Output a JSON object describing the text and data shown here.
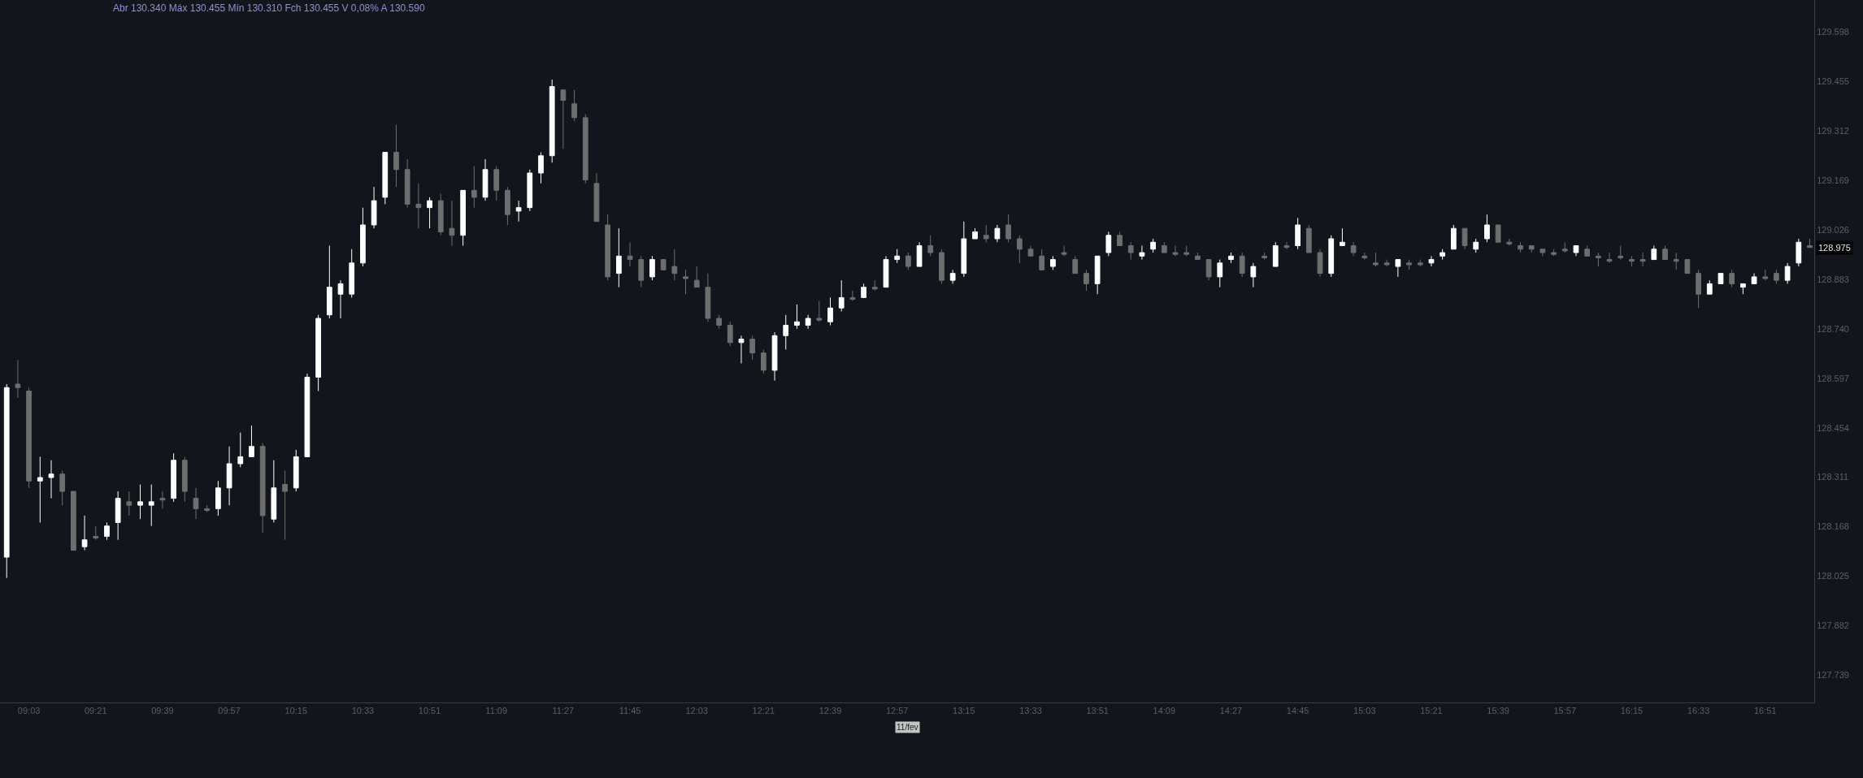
{
  "chart_data": {
    "type": "candlestick",
    "subtitle": "Abr 130.340 Máx 130.455 Mín 130.310 Fch 130.455 V 0,08% A 130.590",
    "x": [
      8.95,
      9.0,
      9.05,
      9.1,
      9.15,
      9.2,
      9.25,
      9.3,
      9.35,
      9.4,
      9.45,
      9.5,
      9.55,
      9.6,
      9.65,
      9.7,
      9.75,
      9.8,
      9.85,
      9.9,
      9.95,
      10.0,
      10.05,
      10.1,
      10.15,
      10.2,
      10.25,
      10.3,
      10.35,
      10.4,
      10.45,
      10.5,
      10.55,
      10.6,
      10.65,
      10.7,
      10.75,
      10.8,
      10.85,
      10.9,
      10.95,
      11.0,
      11.05,
      11.1,
      11.15,
      11.2,
      11.25,
      11.3,
      11.35,
      11.4,
      11.45,
      11.5,
      11.55,
      11.6,
      11.65,
      11.7,
      11.75,
      11.8,
      11.85,
      11.9,
      11.95,
      12.0,
      12.05,
      12.1,
      12.15,
      12.2,
      12.25,
      12.3,
      12.35,
      12.4,
      12.45,
      12.5,
      12.55,
      12.6,
      12.65,
      12.7,
      12.75,
      12.8,
      12.85,
      12.9,
      12.95,
      13.0,
      13.05,
      13.1,
      13.15,
      13.2,
      13.25,
      13.3,
      13.35,
      13.4,
      13.45,
      13.5,
      13.55,
      13.6,
      13.65,
      13.7,
      13.75,
      13.8,
      13.85,
      13.9,
      13.95,
      14.0,
      14.05,
      14.1,
      14.15,
      14.2,
      14.25,
      14.3,
      14.35,
      14.4,
      14.45,
      14.5,
      14.55,
      14.6,
      14.65,
      14.7,
      14.75,
      14.8,
      14.85,
      14.9,
      14.95,
      15.0,
      15.05,
      15.1,
      15.15,
      15.2,
      15.25,
      15.3,
      15.35,
      15.4,
      15.45,
      15.5,
      15.55,
      15.6,
      15.65,
      15.7,
      15.75,
      15.8,
      15.85,
      15.9,
      15.95,
      16.0,
      16.05,
      16.1,
      16.15,
      16.2,
      16.25,
      16.3,
      16.35,
      16.4,
      16.45,
      16.5,
      16.55,
      16.6,
      16.65,
      16.7,
      16.75,
      16.8,
      16.85,
      16.9,
      16.95,
      17.0,
      17.05
    ],
    "ohlc": [
      [
        128.08,
        128.58,
        128.02,
        128.57
      ],
      [
        128.58,
        128.65,
        128.54,
        128.57
      ],
      [
        128.56,
        128.57,
        128.28,
        128.3
      ],
      [
        128.3,
        128.37,
        128.18,
        128.31
      ],
      [
        128.31,
        128.36,
        128.25,
        128.32
      ],
      [
        128.32,
        128.33,
        128.23,
        128.27
      ],
      [
        128.27,
        128.27,
        128.1,
        128.1
      ],
      [
        128.11,
        128.2,
        128.1,
        128.13
      ],
      [
        128.14,
        128.17,
        128.13,
        128.135
      ],
      [
        128.14,
        128.18,
        128.13,
        128.17
      ],
      [
        128.18,
        128.27,
        128.13,
        128.25
      ],
      [
        128.24,
        128.27,
        128.2,
        128.23
      ],
      [
        128.23,
        128.29,
        128.19,
        128.24
      ],
      [
        128.23,
        128.29,
        128.17,
        128.24
      ],
      [
        128.25,
        128.27,
        128.22,
        128.245
      ],
      [
        128.25,
        128.38,
        128.24,
        128.36
      ],
      [
        128.36,
        128.37,
        128.24,
        128.27
      ],
      [
        128.25,
        128.28,
        128.19,
        128.22
      ],
      [
        128.22,
        128.23,
        128.21,
        128.215
      ],
      [
        128.22,
        128.3,
        128.2,
        128.28
      ],
      [
        128.28,
        128.4,
        128.23,
        128.35
      ],
      [
        128.35,
        128.44,
        128.34,
        128.37
      ],
      [
        128.37,
        128.46,
        128.37,
        128.4
      ],
      [
        128.4,
        128.41,
        128.15,
        128.2
      ],
      [
        128.19,
        128.36,
        128.18,
        128.28
      ],
      [
        128.29,
        128.33,
        128.13,
        128.27
      ],
      [
        128.28,
        128.39,
        128.27,
        128.37
      ],
      [
        128.37,
        128.61,
        128.37,
        128.6
      ],
      [
        128.6,
        128.78,
        128.56,
        128.77
      ],
      [
        128.78,
        128.98,
        128.77,
        128.86
      ],
      [
        128.84,
        128.88,
        128.77,
        128.87
      ],
      [
        128.84,
        128.97,
        128.83,
        128.93
      ],
      [
        128.93,
        129.09,
        128.92,
        129.04
      ],
      [
        129.04,
        129.15,
        129.03,
        129.11
      ],
      [
        129.12,
        129.25,
        129.1,
        129.25
      ],
      [
        129.25,
        129.33,
        129.15,
        129.2
      ],
      [
        129.2,
        129.23,
        129.09,
        129.1
      ],
      [
        129.1,
        129.16,
        129.03,
        129.09
      ],
      [
        129.09,
        129.12,
        129.03,
        129.11
      ],
      [
        129.11,
        129.13,
        129.01,
        129.02
      ],
      [
        129.03,
        129.11,
        128.98,
        129.01
      ],
      [
        129.01,
        129.14,
        128.98,
        129.14
      ],
      [
        129.14,
        129.21,
        129.09,
        129.12
      ],
      [
        129.12,
        129.23,
        129.11,
        129.2
      ],
      [
        129.2,
        129.21,
        129.11,
        129.14
      ],
      [
        129.14,
        129.15,
        129.04,
        129.07
      ],
      [
        129.08,
        129.11,
        129.05,
        129.09
      ],
      [
        129.09,
        129.2,
        129.08,
        129.19
      ],
      [
        129.19,
        129.25,
        129.16,
        129.24
      ],
      [
        129.24,
        129.46,
        129.22,
        129.44
      ],
      [
        129.43,
        129.43,
        129.26,
        129.4
      ],
      [
        129.39,
        129.43,
        129.34,
        129.35
      ],
      [
        129.35,
        129.36,
        129.16,
        129.17
      ],
      [
        129.16,
        129.19,
        129.05,
        129.05
      ],
      [
        129.04,
        129.07,
        128.88,
        128.89
      ],
      [
        128.9,
        129.03,
        128.86,
        128.95
      ],
      [
        128.95,
        128.99,
        128.92,
        128.94
      ],
      [
        128.94,
        128.95,
        128.86,
        128.88
      ],
      [
        128.89,
        128.95,
        128.88,
        128.94
      ],
      [
        128.94,
        128.94,
        128.91,
        128.91
      ],
      [
        128.92,
        128.97,
        128.88,
        128.9
      ],
      [
        128.89,
        128.91,
        128.84,
        128.885
      ],
      [
        128.88,
        128.92,
        128.86,
        128.86
      ],
      [
        128.86,
        128.9,
        128.76,
        128.77
      ],
      [
        128.77,
        128.78,
        128.74,
        128.75
      ],
      [
        128.75,
        128.76,
        128.69,
        128.7
      ],
      [
        128.7,
        128.72,
        128.64,
        128.71
      ],
      [
        128.71,
        128.72,
        128.65,
        128.67
      ],
      [
        128.67,
        128.68,
        128.61,
        128.62
      ],
      [
        128.62,
        128.73,
        128.59,
        128.72
      ],
      [
        128.72,
        128.78,
        128.68,
        128.75
      ],
      [
        128.75,
        128.81,
        128.74,
        128.76
      ],
      [
        128.75,
        128.78,
        128.74,
        128.77
      ],
      [
        128.77,
        128.82,
        128.76,
        128.765
      ],
      [
        128.76,
        128.83,
        128.75,
        128.8
      ],
      [
        128.8,
        128.88,
        128.79,
        128.83
      ],
      [
        128.83,
        128.85,
        128.82,
        128.825
      ],
      [
        128.83,
        128.87,
        128.83,
        128.86
      ],
      [
        128.86,
        128.88,
        128.85,
        128.855
      ],
      [
        128.86,
        128.95,
        128.86,
        128.94
      ],
      [
        128.94,
        128.97,
        128.93,
        128.95
      ],
      [
        128.95,
        128.96,
        128.91,
        128.92
      ],
      [
        128.92,
        128.99,
        128.92,
        128.98
      ],
      [
        128.98,
        129.01,
        128.95,
        128.96
      ],
      [
        128.96,
        128.97,
        128.87,
        128.88
      ],
      [
        128.88,
        128.91,
        128.87,
        128.9
      ],
      [
        128.9,
        129.05,
        128.89,
        129.0
      ],
      [
        129.0,
        129.03,
        129.0,
        129.02
      ],
      [
        129.01,
        129.04,
        128.99,
        129.0
      ],
      [
        129.0,
        129.04,
        128.99,
        129.03
      ],
      [
        129.04,
        129.07,
        128.99,
        129.0
      ],
      [
        129.0,
        129.01,
        128.93,
        128.97
      ],
      [
        128.97,
        128.98,
        128.95,
        128.95
      ],
      [
        128.95,
        128.97,
        128.91,
        128.91
      ],
      [
        128.92,
        128.95,
        128.91,
        128.94
      ],
      [
        128.96,
        128.98,
        128.95,
        128.955
      ],
      [
        128.94,
        128.95,
        128.9,
        128.9
      ],
      [
        128.9,
        128.91,
        128.85,
        128.87
      ],
      [
        128.87,
        128.95,
        128.84,
        128.95
      ],
      [
        128.96,
        129.02,
        128.95,
        129.01
      ],
      [
        129.01,
        129.02,
        128.98,
        128.98
      ],
      [
        128.98,
        128.99,
        128.94,
        128.96
      ],
      [
        128.95,
        128.98,
        128.94,
        128.96
      ],
      [
        128.97,
        129.0,
        128.96,
        128.99
      ],
      [
        128.98,
        128.99,
        128.96,
        128.96
      ],
      [
        128.96,
        128.98,
        128.95,
        128.955
      ],
      [
        128.96,
        128.98,
        128.95,
        128.955
      ],
      [
        128.95,
        128.96,
        128.94,
        128.94
      ],
      [
        128.94,
        128.94,
        128.88,
        128.89
      ],
      [
        128.89,
        128.94,
        128.86,
        128.93
      ],
      [
        128.94,
        128.96,
        128.93,
        128.95
      ],
      [
        128.95,
        128.96,
        128.89,
        128.9
      ],
      [
        128.89,
        128.93,
        128.86,
        128.92
      ],
      [
        128.95,
        128.96,
        128.94,
        128.945
      ],
      [
        128.92,
        128.99,
        128.92,
        128.98
      ],
      [
        128.98,
        128.99,
        128.97,
        128.975
      ],
      [
        128.98,
        129.06,
        128.97,
        129.04
      ],
      [
        129.03,
        129.04,
        128.96,
        128.96
      ],
      [
        128.96,
        128.97,
        128.89,
        128.9
      ],
      [
        128.9,
        129.01,
        128.89,
        129.0
      ],
      [
        128.98,
        129.03,
        128.98,
        128.99
      ],
      [
        128.98,
        128.99,
        128.95,
        128.96
      ],
      [
        128.95,
        128.96,
        128.94,
        128.945
      ],
      [
        128.93,
        128.96,
        128.92,
        128.925
      ],
      [
        128.93,
        128.94,
        128.92,
        128.925
      ],
      [
        128.92,
        128.94,
        128.89,
        128.94
      ],
      [
        128.93,
        128.94,
        128.91,
        128.925
      ],
      [
        128.93,
        128.94,
        128.92,
        128.925
      ],
      [
        128.93,
        128.95,
        128.92,
        128.94
      ],
      [
        128.95,
        128.97,
        128.94,
        128.96
      ],
      [
        128.97,
        129.04,
        128.97,
        129.03
      ],
      [
        129.03,
        129.03,
        128.97,
        128.98
      ],
      [
        128.97,
        129.0,
        128.96,
        128.99
      ],
      [
        129.0,
        129.07,
        128.99,
        129.04
      ],
      [
        129.04,
        129.04,
        128.99,
        128.99
      ],
      [
        128.99,
        129.0,
        128.98,
        128.985
      ],
      [
        128.98,
        128.99,
        128.96,
        128.97
      ],
      [
        128.98,
        128.98,
        128.96,
        128.97
      ],
      [
        128.97,
        128.97,
        128.95,
        128.96
      ],
      [
        128.96,
        128.97,
        128.95,
        128.955
      ],
      [
        128.97,
        128.99,
        128.96,
        128.965
      ],
      [
        128.96,
        128.98,
        128.95,
        128.98
      ],
      [
        128.97,
        128.98,
        128.95,
        128.95
      ],
      [
        128.95,
        128.96,
        128.92,
        128.945
      ],
      [
        128.94,
        128.96,
        128.93,
        128.935
      ],
      [
        128.95,
        128.98,
        128.94,
        128.945
      ],
      [
        128.94,
        128.95,
        128.92,
        128.935
      ],
      [
        128.94,
        128.96,
        128.92,
        128.935
      ],
      [
        128.94,
        128.98,
        128.94,
        128.97
      ],
      [
        128.97,
        128.98,
        128.94,
        128.94
      ],
      [
        128.94,
        128.96,
        128.91,
        128.935
      ],
      [
        128.94,
        128.94,
        128.9,
        128.9
      ],
      [
        128.9,
        128.91,
        128.8,
        128.84
      ],
      [
        128.84,
        128.88,
        128.84,
        128.87
      ],
      [
        128.87,
        128.9,
        128.87,
        128.9
      ],
      [
        128.9,
        128.91,
        128.86,
        128.87
      ],
      [
        128.86,
        128.87,
        128.84,
        128.87
      ],
      [
        128.87,
        128.9,
        128.87,
        128.89
      ],
      [
        128.89,
        128.91,
        128.88,
        128.885
      ],
      [
        128.9,
        128.91,
        128.87,
        128.88
      ],
      [
        128.88,
        128.93,
        128.87,
        128.92
      ],
      [
        128.93,
        129.0,
        128.92,
        128.99
      ],
      [
        128.98,
        129.0,
        128.975,
        128.975
      ]
    ],
    "colors": [
      "#ffffff",
      "#6e6e6e",
      "#6e6e6e",
      "#ffffff",
      "#ffffff",
      "#6e6e6e",
      "#6e6e6e",
      "#ffffff",
      "#6e6e6e",
      "#ffffff",
      "#ffffff",
      "#6e6e6e",
      "#ffffff",
      "#ffffff",
      "#6e6e6e",
      "#ffffff",
      "#6e6e6e",
      "#6e6e6e",
      "#6e6e6e",
      "#ffffff",
      "#ffffff",
      "#ffffff",
      "#ffffff",
      "#6e6e6e",
      "#ffffff",
      "#6e6e6e",
      "#ffffff",
      "#ffffff",
      "#ffffff",
      "#ffffff",
      "#ffffff",
      "#ffffff",
      "#ffffff",
      "#ffffff",
      "#ffffff",
      "#6e6e6e",
      "#6e6e6e",
      "#6e6e6e",
      "#ffffff",
      "#6e6e6e",
      "#6e6e6e",
      "#ffffff",
      "#6e6e6e",
      "#ffffff",
      "#6e6e6e",
      "#6e6e6e",
      "#ffffff",
      "#ffffff",
      "#ffffff",
      "#ffffff",
      "#6e6e6e",
      "#6e6e6e",
      "#6e6e6e",
      "#6e6e6e",
      "#6e6e6e",
      "#ffffff",
      "#6e6e6e",
      "#6e6e6e",
      "#ffffff",
      "#6e6e6e",
      "#6e6e6e",
      "#6e6e6e",
      "#6e6e6e",
      "#6e6e6e",
      "#6e6e6e",
      "#6e6e6e",
      "#ffffff",
      "#6e6e6e",
      "#6e6e6e",
      "#ffffff",
      "#ffffff",
      "#ffffff",
      "#ffffff",
      "#6e6e6e",
      "#ffffff",
      "#ffffff",
      "#6e6e6e",
      "#ffffff",
      "#6e6e6e",
      "#ffffff",
      "#ffffff",
      "#6e6e6e",
      "#ffffff",
      "#6e6e6e",
      "#6e6e6e",
      "#ffffff",
      "#ffffff",
      "#ffffff",
      "#6e6e6e",
      "#ffffff",
      "#6e6e6e",
      "#6e6e6e",
      "#6e6e6e",
      "#6e6e6e",
      "#ffffff",
      "#6e6e6e",
      "#6e6e6e",
      "#6e6e6e",
      "#ffffff",
      "#ffffff",
      "#6e6e6e",
      "#6e6e6e",
      "#ffffff",
      "#ffffff",
      "#6e6e6e",
      "#6e6e6e",
      "#6e6e6e",
      "#6e6e6e",
      "#6e6e6e",
      "#ffffff",
      "#ffffff",
      "#6e6e6e",
      "#ffffff",
      "#6e6e6e",
      "#ffffff",
      "#6e6e6e",
      "#ffffff",
      "#6e6e6e",
      "#6e6e6e",
      "#ffffff",
      "#ffffff",
      "#6e6e6e",
      "#6e6e6e",
      "#6e6e6e",
      "#6e6e6e",
      "#ffffff",
      "#6e6e6e",
      "#6e6e6e",
      "#ffffff",
      "#ffffff",
      "#ffffff",
      "#6e6e6e",
      "#ffffff",
      "#ffffff",
      "#6e6e6e",
      "#6e6e6e",
      "#6e6e6e",
      "#6e6e6e",
      "#6e6e6e",
      "#6e6e6e",
      "#6e6e6e",
      "#ffffff",
      "#6e6e6e",
      "#6e6e6e",
      "#6e6e6e",
      "#6e6e6e",
      "#6e6e6e",
      "#6e6e6e",
      "#ffffff",
      "#6e6e6e",
      "#6e6e6e",
      "#6e6e6e",
      "#6e6e6e",
      "#ffffff",
      "#ffffff",
      "#6e6e6e",
      "#ffffff",
      "#ffffff",
      "#6e6e6e",
      "#6e6e6e",
      "#ffffff",
      "#ffffff",
      "#6e6e6e"
    ],
    "xlim": [
      8.92,
      17.07
    ],
    "xticks": [
      {
        "value": 9.05,
        "label": "09:03"
      },
      {
        "value": 9.35,
        "label": "09:21"
      },
      {
        "value": 9.65,
        "label": "09:39"
      },
      {
        "value": 9.95,
        "label": "09:57"
      },
      {
        "value": 10.25,
        "label": "10:15"
      },
      {
        "value": 10.55,
        "label": "10:33"
      },
      {
        "value": 10.85,
        "label": "10:51"
      },
      {
        "value": 11.15,
        "label": "11:09"
      },
      {
        "value": 11.45,
        "label": "11:27"
      },
      {
        "value": 11.75,
        "label": "11:45"
      },
      {
        "value": 12.05,
        "label": "12:03"
      },
      {
        "value": 12.35,
        "label": "12:21"
      },
      {
        "value": 12.65,
        "label": "12:39"
      },
      {
        "value": 12.95,
        "label": "12:57"
      },
      {
        "value": 13.25,
        "label": "13:15"
      },
      {
        "value": 13.55,
        "label": "13:33"
      },
      {
        "value": 13.85,
        "label": "13:51"
      },
      {
        "value": 14.15,
        "label": "14:09"
      },
      {
        "value": 14.45,
        "label": "14:27"
      },
      {
        "value": 14.75,
        "label": "14:45"
      },
      {
        "value": 15.05,
        "label": "15:03"
      },
      {
        "value": 15.35,
        "label": "15:21"
      },
      {
        "value": 15.65,
        "label": "15:39"
      },
      {
        "value": 15.95,
        "label": "15:57"
      },
      {
        "value": 16.25,
        "label": "16:15"
      },
      {
        "value": 16.55,
        "label": "16:33"
      },
      {
        "value": 16.85,
        "label": "16:51"
      }
    ],
    "ylim": [
      127.66,
      129.69
    ],
    "yticks": [
      127.739,
      127.882,
      128.025,
      128.168,
      128.311,
      128.454,
      128.597,
      {
        "value": 128.74,
        "label": "128.740"
      },
      128.883,
      129.026,
      129.169,
      129.312,
      129.455,
      129.598
    ],
    "annotations": [
      "128.975",
      "11/fev"
    ]
  }
}
